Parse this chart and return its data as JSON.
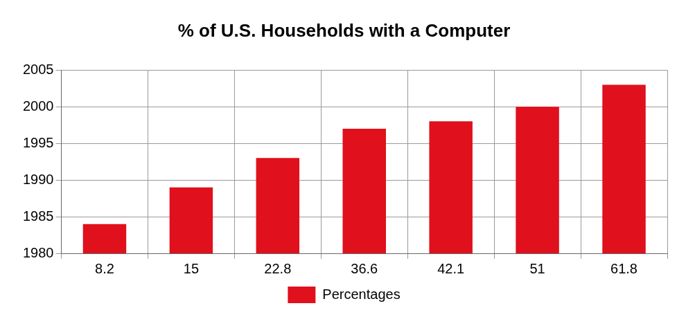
{
  "chart_data": {
    "type": "bar",
    "title": "% of U.S. Households with a Computer",
    "categories": [
      "8.2",
      "15",
      "22.8",
      "36.6",
      "42.1",
      "51",
      "61.8"
    ],
    "series": [
      {
        "name": "Percentages",
        "color": "#e0101c",
        "values": [
          1984,
          1989,
          1993,
          1997,
          1998,
          2000,
          2003
        ]
      }
    ],
    "ylim": [
      1980,
      2005
    ],
    "yticks": [
      1980,
      1985,
      1990,
      1995,
      2000,
      2005
    ],
    "grid": true,
    "legend": "bottom"
  }
}
